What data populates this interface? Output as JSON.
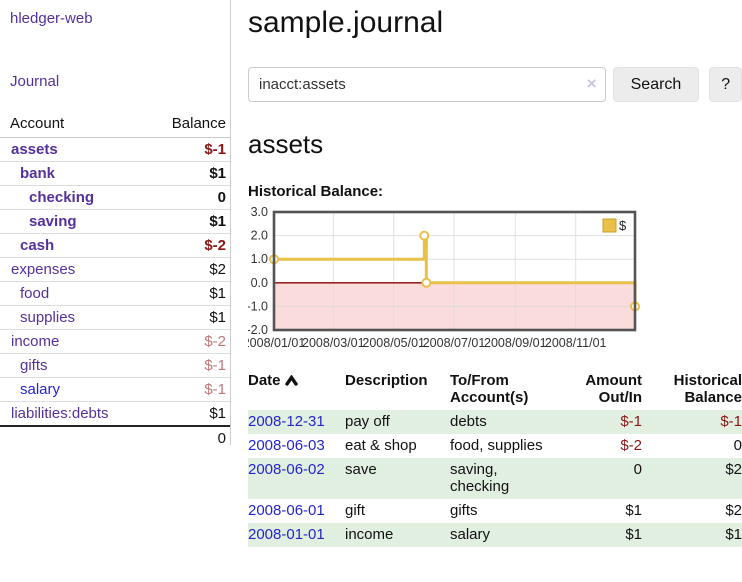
{
  "sidebar": {
    "app_title": "hledger-web",
    "nav": {
      "journal_label": "Journal"
    },
    "accounts_table": {
      "headers": {
        "account": "Account",
        "balance": "Balance"
      },
      "rows": [
        {
          "label": "assets",
          "indent": 1,
          "bold": true,
          "balance": "$-1",
          "negative": "strong",
          "link": "purple"
        },
        {
          "label": "bank",
          "indent": 2,
          "bold": true,
          "balance": "$1",
          "negative": "none",
          "link": "purple"
        },
        {
          "label": "checking",
          "indent": 3,
          "bold": true,
          "balance": "0",
          "negative": "none",
          "link": "purple"
        },
        {
          "label": "saving",
          "indent": 3,
          "bold": true,
          "balance": "$1",
          "negative": "none",
          "link": "purple"
        },
        {
          "label": "cash",
          "indent": 2,
          "bold": true,
          "balance": "$-2",
          "negative": "strong",
          "link": "purple"
        },
        {
          "label": "expenses",
          "indent": 1,
          "bold": false,
          "balance": "$2",
          "negative": "none",
          "link": "purple"
        },
        {
          "label": "food",
          "indent": 2,
          "bold": false,
          "balance": "$1",
          "negative": "none",
          "link": "purple"
        },
        {
          "label": "supplies",
          "indent": 2,
          "bold": false,
          "balance": "$1",
          "negative": "none",
          "link": "purple"
        },
        {
          "label": "income",
          "indent": 1,
          "bold": false,
          "balance": "$-2",
          "negative": "muted",
          "link": "purple"
        },
        {
          "label": "gifts",
          "indent": 2,
          "bold": false,
          "balance": "$-1",
          "negative": "muted",
          "link": "purple"
        },
        {
          "label": "salary",
          "indent": 2,
          "bold": false,
          "balance": "$-1",
          "negative": "muted",
          "link": "blue"
        },
        {
          "label": "liabilities:debts",
          "indent": 1,
          "bold": false,
          "balance": "$1",
          "negative": "none",
          "link": "purple"
        }
      ],
      "total": "0"
    }
  },
  "main": {
    "page_title": "sample.journal",
    "search": {
      "query": "inacct:assets",
      "clear_icon": "×",
      "search_button_label": "Search",
      "help_button_label": "?"
    },
    "account_heading": "assets",
    "chart_heading": "Historical Balance:"
  },
  "chart_data": {
    "type": "line",
    "subtype": "step",
    "title": "Historical Balance",
    "series": [
      {
        "name": "$",
        "color": "#e8c04a",
        "points": [
          [
            "2008-01-01",
            1
          ],
          [
            "2008-06-01",
            2
          ],
          [
            "2008-06-03",
            0
          ],
          [
            "2008-12-31",
            -1
          ]
        ]
      }
    ],
    "x_range": [
      "2008-01-01",
      "2008-12-31"
    ],
    "ylim": [
      -2,
      3
    ],
    "y_ticks": [
      {
        "value": 3,
        "label": "3.0"
      },
      {
        "value": 2,
        "label": "2.0"
      },
      {
        "value": 1,
        "label": "1.0"
      },
      {
        "value": 0,
        "label": "0.0"
      },
      {
        "value": -1,
        "label": "-1.0"
      },
      {
        "value": -2,
        "label": "-2.0"
      }
    ],
    "x_ticks": [
      {
        "date": "2008-01-01",
        "label": "2008/01/01"
      },
      {
        "date": "2008-03-01",
        "label": "2008/03/01"
      },
      {
        "date": "2008-05-01",
        "label": "2008/05/01"
      },
      {
        "date": "2008-07-01",
        "label": "2008/07/01"
      },
      {
        "date": "2008-09-01",
        "label": "2008/09/01"
      },
      {
        "date": "2008-11-01",
        "label": "2008/11/01"
      }
    ],
    "legend": {
      "label": "$",
      "position": "top-right"
    },
    "grid": true,
    "negative_region_color": "#fbdcdc",
    "zero_line_color": "#8b0000",
    "grid_color": "#d9d9d9",
    "border_color": "#545454"
  },
  "transactions_table": {
    "headers": {
      "date": "Date",
      "description": "Description",
      "tofrom": "To/From Account(s)",
      "amount": "Amount Out/In",
      "balance": "Historical Balance"
    },
    "sort": {
      "column": "date",
      "direction": "ascending"
    },
    "rows": [
      {
        "date": "2008-12-31",
        "description": "pay off",
        "accounts": "debts",
        "amount": "$-1",
        "amount_negative": true,
        "balance": "$-1",
        "balance_negative": true
      },
      {
        "date": "2008-06-03",
        "description": "eat & shop",
        "accounts": "food, supplies",
        "amount": "$-2",
        "amount_negative": true,
        "balance": "0",
        "balance_negative": false
      },
      {
        "date": "2008-06-02",
        "description": "save",
        "accounts": "saving, checking",
        "amount": "0",
        "amount_negative": false,
        "balance": "$2",
        "balance_negative": false
      },
      {
        "date": "2008-06-01",
        "description": "gift",
        "accounts": "gifts",
        "amount": "$1",
        "amount_negative": false,
        "balance": "$2",
        "balance_negative": false
      },
      {
        "date": "2008-01-01",
        "description": "income",
        "accounts": "salary",
        "amount": "$1",
        "amount_negative": false,
        "balance": "$1",
        "balance_negative": false
      }
    ]
  },
  "colors": {
    "link_purple": "#54319c",
    "link_blue": "#2525cc",
    "negative_strong": "#8b1515",
    "negative_muted": "#bb7777",
    "row_stripe_green": "#e1efe1",
    "series_gold": "#e8c04a"
  }
}
